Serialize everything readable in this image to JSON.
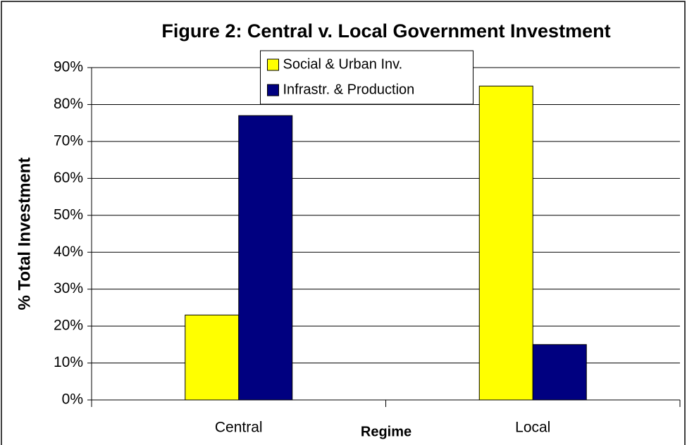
{
  "chart_data": {
    "type": "bar",
    "title": "Figure 2: Central v. Local Government Investment",
    "x_label": "Regime",
    "y_label": "% Total Investment",
    "categories": [
      "Central",
      "Local"
    ],
    "series": [
      {
        "name": "Social & Urban Inv.",
        "color": "#ffff00",
        "values": [
          23,
          85
        ]
      },
      {
        "name": "Infrastr. & Production",
        "color": "#000080",
        "values": [
          77,
          15
        ]
      }
    ],
    "ylim": [
      0,
      90
    ],
    "yticks": [
      {
        "value": 0,
        "label": "0%"
      },
      {
        "value": 10,
        "label": "10%"
      },
      {
        "value": 20,
        "label": "20%"
      },
      {
        "value": 30,
        "label": "30%"
      },
      {
        "value": 40,
        "label": "40%"
      },
      {
        "value": 50,
        "label": "50%"
      },
      {
        "value": 60,
        "label": "60%"
      },
      {
        "value": 70,
        "label": "70%"
      },
      {
        "value": 80,
        "label": "80%"
      },
      {
        "value": 90,
        "label": "90%"
      }
    ],
    "grid": true,
    "legend": "top-center"
  }
}
